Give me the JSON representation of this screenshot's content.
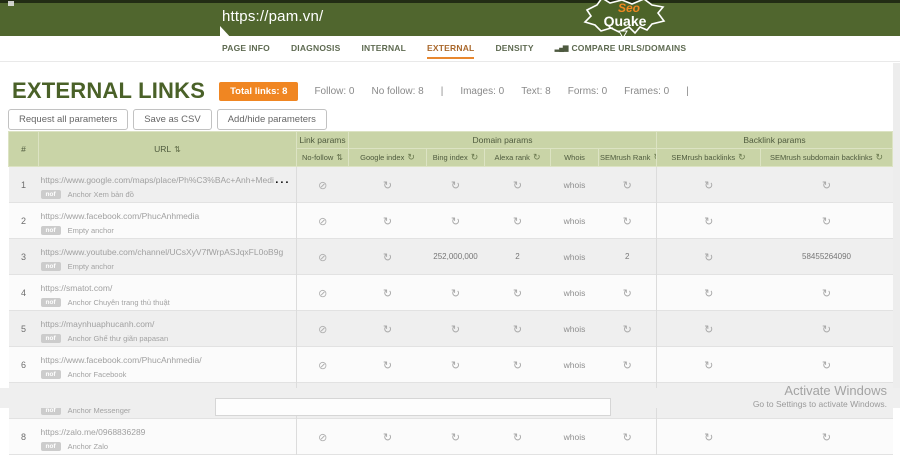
{
  "topbar": {
    "url": "https://pam.vn/",
    "logo": {
      "line1": "Seo",
      "line2": "Quake"
    }
  },
  "nav": {
    "tabs": [
      {
        "label": "PAGE INFO",
        "active": false
      },
      {
        "label": "DIAGNOSIS",
        "active": false
      },
      {
        "label": "INTERNAL",
        "active": false
      },
      {
        "label": "EXTERNAL",
        "active": true
      },
      {
        "label": "DENSITY",
        "active": false
      },
      {
        "label": "COMPARE URLS/DOMAINS",
        "active": false,
        "icon": "bar-chart-icon"
      }
    ]
  },
  "header": {
    "title": "EXTERNAL LINKS",
    "total_badge": "Total links: 8",
    "stats": [
      "Follow: 0",
      "No follow: 8",
      "|",
      "Images: 0",
      "Text: 8",
      "Forms: 0",
      "Frames: 0",
      "|"
    ]
  },
  "toolbar": {
    "buttons": [
      "Request all parameters",
      "Save as CSV",
      "Add/hide parameters"
    ]
  },
  "table": {
    "groups": [
      {
        "label": "Link params"
      },
      {
        "label": "Domain params"
      },
      {
        "label": "Backlink params"
      }
    ],
    "columns": [
      {
        "label": "#"
      },
      {
        "label": "URL",
        "icon": "sort-icon"
      },
      {
        "label": "No-follow",
        "icon": "sort-icon"
      },
      {
        "label": "Google index",
        "icon": "refresh-icon"
      },
      {
        "label": "Bing index",
        "icon": "refresh-icon"
      },
      {
        "label": "Alexa rank",
        "icon": "refresh-icon"
      },
      {
        "label": "Whois"
      },
      {
        "label": "SEMrush Rank",
        "icon": "refresh-icon"
      },
      {
        "label": "SEMrush backlinks",
        "icon": "refresh-icon"
      },
      {
        "label": "SEMrush subdomain backlinks",
        "icon": "refresh-icon"
      }
    ],
    "rows": [
      {
        "num": "1",
        "url": "https://www.google.com/maps/place/Ph%C3%BAc+Anh+Media/@21.0298066,105.7668856...",
        "tag": "nof",
        "anchor": "Anchor Xem bản đồ",
        "cells": [
          {
            "icon": "nofollow-icon"
          },
          {
            "icon": "refresh-icon"
          },
          {
            "icon": "refresh-icon"
          },
          {
            "icon": "refresh-icon"
          },
          {
            "link": "whois"
          },
          {
            "icon": "refresh-icon"
          },
          {
            "icon": "refresh-icon"
          },
          {
            "icon": "refresh-icon"
          }
        ]
      },
      {
        "num": "2",
        "url": "https://www.facebook.com/PhucAnhmedia",
        "tag": "nof",
        "anchor": "Empty anchor",
        "cells": [
          {
            "icon": "nofollow-icon"
          },
          {
            "icon": "refresh-icon"
          },
          {
            "icon": "refresh-icon"
          },
          {
            "icon": "refresh-icon"
          },
          {
            "link": "whois"
          },
          {
            "icon": "refresh-icon"
          },
          {
            "icon": "refresh-icon"
          },
          {
            "icon": "refresh-icon"
          }
        ]
      },
      {
        "num": "3",
        "url": "https://www.youtube.com/channel/UCsXyV7fWrpASJqxFL0oB9g",
        "tag": "nof",
        "anchor": "Empty anchor",
        "cells": [
          {
            "icon": "nofollow-icon"
          },
          {
            "icon": "refresh-icon"
          },
          {
            "text": "252,000,000"
          },
          {
            "text": "2"
          },
          {
            "link": "whois"
          },
          {
            "text": "2"
          },
          {
            "icon": "refresh-icon"
          },
          {
            "text": "58455264090"
          }
        ]
      },
      {
        "num": "4",
        "url": "https://smatot.com/",
        "tag": "nof",
        "anchor": "Anchor Chuyên trang thủ thuật",
        "cells": [
          {
            "icon": "nofollow-icon"
          },
          {
            "icon": "refresh-icon"
          },
          {
            "icon": "refresh-icon"
          },
          {
            "icon": "refresh-icon"
          },
          {
            "link": "whois"
          },
          {
            "icon": "refresh-icon"
          },
          {
            "icon": "refresh-icon"
          },
          {
            "icon": "refresh-icon"
          }
        ]
      },
      {
        "num": "5",
        "url": "https://maynhuaphucanh.com/",
        "tag": "nof",
        "anchor": "Anchor Ghế thư giãn papasan",
        "cells": [
          {
            "icon": "nofollow-icon"
          },
          {
            "icon": "refresh-icon"
          },
          {
            "icon": "refresh-icon"
          },
          {
            "icon": "refresh-icon"
          },
          {
            "link": "whois"
          },
          {
            "icon": "refresh-icon"
          },
          {
            "icon": "refresh-icon"
          },
          {
            "icon": "refresh-icon"
          }
        ]
      },
      {
        "num": "6",
        "url": "https://www.facebook.com/PhucAnhmedia/",
        "tag": "nof",
        "anchor": "Anchor Facebook",
        "cells": [
          {
            "icon": "nofollow-icon"
          },
          {
            "icon": "refresh-icon"
          },
          {
            "icon": "refresh-icon"
          },
          {
            "icon": "refresh-icon"
          },
          {
            "link": "whois"
          },
          {
            "icon": "refresh-icon"
          },
          {
            "icon": "refresh-icon"
          },
          {
            "icon": "refresh-icon"
          }
        ]
      },
      {
        "num": "7",
        "url": "https://m.me/PhucAnhmedia/",
        "tag": "nof",
        "anchor": "Anchor Messenger",
        "cells": [
          {
            "icon": "nofollow-icon"
          },
          {
            "icon": "refresh-icon"
          },
          {
            "icon": "refresh-icon"
          },
          {
            "icon": "refresh-icon"
          },
          {
            "link": "whois"
          },
          {
            "icon": "refresh-icon"
          },
          {
            "icon": "refresh-icon"
          },
          {
            "icon": "refresh-icon"
          }
        ]
      },
      {
        "num": "8",
        "url": "https://zalo.me/0968836289",
        "tag": "nof",
        "anchor": "Anchor Zalo",
        "cells": [
          {
            "icon": "nofollow-icon"
          },
          {
            "icon": "refresh-icon"
          },
          {
            "icon": "refresh-icon"
          },
          {
            "icon": "refresh-icon"
          },
          {
            "link": "whois"
          },
          {
            "icon": "refresh-icon"
          },
          {
            "icon": "refresh-icon"
          },
          {
            "icon": "refresh-icon"
          }
        ]
      }
    ]
  },
  "watermark": {
    "line1": "Activate Windows",
    "line2": "Go to Settings to activate Windows."
  },
  "colors": {
    "topbar_green": "#50662e",
    "accent_orange": "#f08622",
    "header_sage": "#c9d4a7",
    "title_green": "#4a6128"
  }
}
